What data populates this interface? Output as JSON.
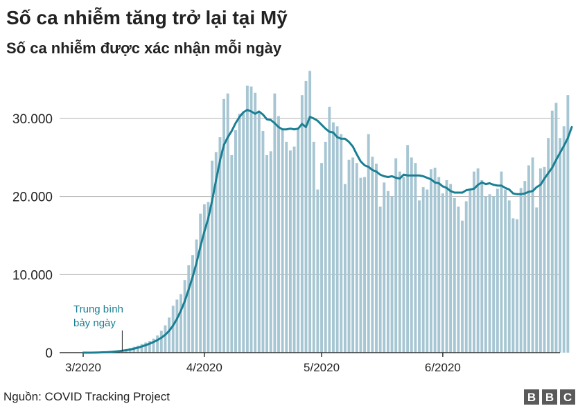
{
  "header": {
    "title": "Số ca nhiễm tăng trở lại tại Mỹ",
    "subtitle": "Số ca nhiễm được xác nhận mỗi ngày"
  },
  "footer": {
    "source_label": "Nguồn",
    "source_text": ": COVID Tracking Project",
    "logo_letters": [
      "B",
      "B",
      "C"
    ]
  },
  "colors": {
    "bar": "#a7c6d3",
    "average_line": "#1a7f93",
    "annotation_text": "#1a7f93",
    "grid": "#b0b0b0",
    "axis": "#333333"
  },
  "chart_data": {
    "type": "bar",
    "title": "Số ca nhiễm tăng trở lại tại Mỹ",
    "subtitle": "Số ca nhiễm được xác nhận mỗi ngày",
    "ylim": [
      0,
      35000
    ],
    "yticks": [
      0,
      10000,
      20000,
      30000
    ],
    "ytick_labels": [
      "0",
      "10.000",
      "20.000",
      "30.000"
    ],
    "grid": true,
    "x_tick_labels": [
      {
        "label": "3/2020",
        "day": 1
      },
      {
        "label": "4/2020",
        "day": 32
      },
      {
        "label": "5/2020",
        "day": 62
      },
      {
        "label": "6/2020",
        "day": 93
      }
    ],
    "x_first_day": 1,
    "series": [
      {
        "kind": "bar",
        "values": [
          20,
          25,
          30,
          40,
          60,
          80,
          100,
          150,
          200,
          280,
          350,
          450,
          600,
          750,
          900,
          1100,
          1300,
          1500,
          1800,
          2200,
          2800,
          3500,
          4500,
          6000,
          6800,
          7500,
          9300,
          11200,
          12500,
          14500,
          17800,
          19000,
          19300,
          24600,
          25700,
          27600,
          32500,
          33200,
          25300,
          28500,
          30600,
          30700,
          34200,
          34100,
          33300,
          30700,
          28400,
          25300,
          25800,
          33200,
          30300,
          28700,
          27000,
          25900,
          26400,
          28800,
          33000,
          34800,
          36100,
          27000,
          20900,
          24300,
          27000,
          31500,
          29500,
          29000,
          28000,
          21600,
          24700,
          25000,
          24300,
          22400,
          22500,
          28000,
          25100,
          24200,
          18700,
          21800,
          20700,
          20000,
          24900,
          23200,
          22500,
          26600,
          25000,
          24300,
          19500,
          21200,
          20900,
          23500,
          23700,
          22500,
          20400,
          22100,
          21600,
          19800,
          18700,
          16900,
          19400,
          21000,
          23200,
          23600,
          22100,
          20000,
          20300,
          20000,
          21000,
          23200,
          20900,
          19500,
          17200,
          17100,
          21100,
          22000,
          24000,
          25000,
          18600,
          23600,
          23800,
          27500,
          31000,
          32000,
          27500,
          29000,
          33000
        ]
      },
      {
        "kind": "line",
        "name": "Trung bình bảy ngày",
        "values": [
          0,
          0,
          0,
          10,
          20,
          40,
          60,
          90,
          130,
          180,
          240,
          310,
          400,
          510,
          640,
          790,
          960,
          1150,
          1360,
          1610,
          1910,
          2290,
          2790,
          3470,
          4340,
          5380,
          6600,
          8100,
          9700,
          11500,
          13600,
          15500,
          17200,
          19500,
          22100,
          24600,
          26600,
          27600,
          28400,
          29400,
          30200,
          30800,
          31100,
          30900,
          30600,
          30900,
          30500,
          29900,
          29800,
          29400,
          28900,
          28600,
          28600,
          28700,
          28600,
          28700,
          29300,
          28900,
          30200,
          30000,
          29700,
          29200,
          28700,
          28300,
          28200,
          27600,
          27400,
          27400,
          27000,
          26400,
          25400,
          24500,
          24000,
          23800,
          23400,
          23200,
          22800,
          22600,
          22500,
          22600,
          22400,
          22300,
          22800,
          22700,
          22700,
          22700,
          22700,
          22600,
          22400,
          22200,
          21800,
          21700,
          21300,
          21100,
          20700,
          20500,
          20500,
          20500,
          20800,
          20900,
          21000,
          21500,
          21800,
          21600,
          21700,
          21500,
          21400,
          21400,
          21100,
          20900,
          20400,
          20300,
          20300,
          20400,
          20600,
          20700,
          21200,
          21500,
          22300,
          23000,
          23700,
          24700,
          25600,
          26500,
          27500,
          28900
        ]
      }
    ],
    "annotations": [
      {
        "text_lines": [
          "Trung bình",
          "bảy ngày"
        ],
        "points_to_day": 11
      }
    ]
  }
}
